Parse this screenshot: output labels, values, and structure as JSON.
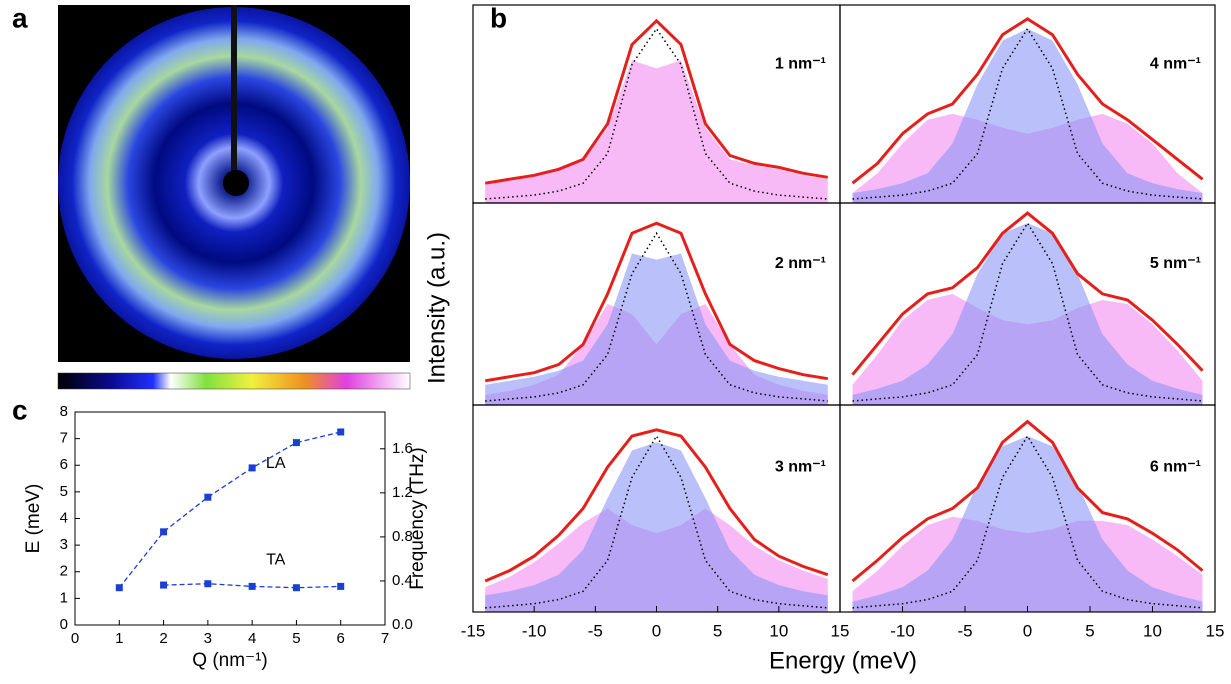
{
  "panel_labels": {
    "a": "a",
    "b": "b",
    "c": "c"
  },
  "shared_axes": {
    "xlabel": "Energy (meV)",
    "ylabel": "Intensity (a.u.)"
  },
  "chart_data": [
    {
      "type": "line",
      "label": "1 nm⁻¹",
      "xlim": [
        -15,
        15
      ],
      "ylim": [
        0,
        1
      ],
      "x": [
        -14,
        -12,
        -10,
        -8,
        -6,
        -4,
        -2,
        0,
        2,
        4,
        6,
        8,
        10,
        12,
        14
      ],
      "series": [
        {
          "style": "area",
          "color": "#f48cf0",
          "values": [
            0.1,
            0.12,
            0.14,
            0.17,
            0.21,
            0.38,
            0.72,
            0.68,
            0.72,
            0.38,
            0.22,
            0.19,
            0.17,
            0.14,
            0.12
          ]
        },
        {
          "style": "dotted",
          "color": "#000000",
          "values": [
            0.02,
            0.03,
            0.04,
            0.06,
            0.1,
            0.25,
            0.7,
            0.88,
            0.7,
            0.25,
            0.1,
            0.06,
            0.04,
            0.03,
            0.02
          ]
        },
        {
          "style": "line",
          "color": "#e3201b",
          "values": [
            0.1,
            0.12,
            0.14,
            0.17,
            0.22,
            0.4,
            0.8,
            0.92,
            0.8,
            0.4,
            0.24,
            0.2,
            0.18,
            0.15,
            0.13
          ]
        }
      ]
    },
    {
      "type": "line",
      "label": "2 nm⁻¹",
      "xlim": [
        -15,
        15
      ],
      "ylim": [
        0,
        1
      ],
      "x": [
        -14,
        -12,
        -10,
        -8,
        -6,
        -4,
        -2,
        0,
        2,
        4,
        6,
        8,
        10,
        12,
        14
      ],
      "series": [
        {
          "style": "area",
          "color": "#f48cf0",
          "values": [
            0.05,
            0.07,
            0.1,
            0.15,
            0.3,
            0.5,
            0.45,
            0.3,
            0.45,
            0.5,
            0.3,
            0.15,
            0.1,
            0.07,
            0.05
          ]
        },
        {
          "style": "area",
          "color": "#8c96f5",
          "values": [
            0.1,
            0.12,
            0.14,
            0.17,
            0.22,
            0.4,
            0.75,
            0.72,
            0.75,
            0.4,
            0.22,
            0.17,
            0.14,
            0.12,
            0.1
          ]
        },
        {
          "style": "dotted",
          "color": "#000000",
          "values": [
            0.02,
            0.03,
            0.04,
            0.06,
            0.1,
            0.25,
            0.65,
            0.85,
            0.65,
            0.25,
            0.1,
            0.06,
            0.04,
            0.03,
            0.02
          ]
        },
        {
          "style": "line",
          "color": "#e3201b",
          "values": [
            0.12,
            0.14,
            0.16,
            0.2,
            0.3,
            0.55,
            0.85,
            0.9,
            0.85,
            0.55,
            0.3,
            0.22,
            0.18,
            0.15,
            0.13
          ]
        }
      ]
    },
    {
      "type": "line",
      "label": "3 nm⁻¹",
      "xlim": [
        -15,
        15
      ],
      "ylim": [
        0,
        1
      ],
      "x": [
        -14,
        -12,
        -10,
        -8,
        -6,
        -4,
        -2,
        0,
        2,
        4,
        6,
        8,
        10,
        12,
        14
      ],
      "xticks": [
        -15,
        -10,
        -5,
        0,
        5,
        10,
        15
      ],
      "series": [
        {
          "style": "area",
          "color": "#f48cf0",
          "values": [
            0.12,
            0.17,
            0.24,
            0.33,
            0.43,
            0.5,
            0.42,
            0.38,
            0.42,
            0.5,
            0.42,
            0.32,
            0.25,
            0.2,
            0.16
          ]
        },
        {
          "style": "area",
          "color": "#8c96f5",
          "values": [
            0.08,
            0.1,
            0.13,
            0.18,
            0.3,
            0.55,
            0.78,
            0.82,
            0.78,
            0.55,
            0.3,
            0.18,
            0.13,
            0.1,
            0.08
          ]
        },
        {
          "style": "dotted",
          "color": "#000000",
          "values": [
            0.02,
            0.03,
            0.04,
            0.06,
            0.1,
            0.25,
            0.65,
            0.85,
            0.65,
            0.25,
            0.1,
            0.06,
            0.04,
            0.03,
            0.02
          ]
        },
        {
          "style": "line",
          "color": "#e3201b",
          "values": [
            0.15,
            0.2,
            0.27,
            0.37,
            0.5,
            0.7,
            0.85,
            0.88,
            0.85,
            0.7,
            0.5,
            0.35,
            0.27,
            0.22,
            0.18
          ]
        }
      ]
    },
    {
      "type": "line",
      "label": "4 nm⁻¹",
      "xlim": [
        -15,
        15
      ],
      "ylim": [
        0,
        1
      ],
      "x": [
        -14,
        -12,
        -10,
        -8,
        -6,
        -4,
        -2,
        0,
        2,
        4,
        6,
        8,
        10,
        12,
        14
      ],
      "series": [
        {
          "style": "area",
          "color": "#f48cf0",
          "values": [
            0.05,
            0.15,
            0.3,
            0.42,
            0.45,
            0.42,
            0.38,
            0.35,
            0.38,
            0.42,
            0.45,
            0.4,
            0.3,
            0.15,
            0.05
          ]
        },
        {
          "style": "area",
          "color": "#8c96f5",
          "values": [
            0.05,
            0.07,
            0.1,
            0.15,
            0.3,
            0.6,
            0.82,
            0.88,
            0.82,
            0.6,
            0.3,
            0.15,
            0.1,
            0.07,
            0.05
          ]
        },
        {
          "style": "dotted",
          "color": "#000000",
          "values": [
            0.02,
            0.03,
            0.04,
            0.06,
            0.1,
            0.25,
            0.68,
            0.88,
            0.68,
            0.25,
            0.1,
            0.06,
            0.04,
            0.03,
            0.02
          ]
        },
        {
          "style": "line",
          "color": "#e3201b",
          "values": [
            0.1,
            0.2,
            0.35,
            0.45,
            0.5,
            0.65,
            0.85,
            0.93,
            0.85,
            0.65,
            0.5,
            0.42,
            0.32,
            0.22,
            0.12
          ]
        }
      ]
    },
    {
      "type": "line",
      "label": "5 nm⁻¹",
      "xlim": [
        -15,
        15
      ],
      "ylim": [
        0,
        1
      ],
      "x": [
        -14,
        -12,
        -10,
        -8,
        -6,
        -4,
        -2,
        0,
        2,
        4,
        6,
        8,
        10,
        12,
        14
      ],
      "series": [
        {
          "style": "area",
          "color": "#f48cf0",
          "values": [
            0.1,
            0.25,
            0.42,
            0.52,
            0.55,
            0.48,
            0.42,
            0.4,
            0.42,
            0.48,
            0.52,
            0.5,
            0.4,
            0.27,
            0.12
          ]
        },
        {
          "style": "area",
          "color": "#8c96f5",
          "values": [
            0.05,
            0.08,
            0.12,
            0.2,
            0.35,
            0.65,
            0.85,
            0.9,
            0.85,
            0.65,
            0.35,
            0.2,
            0.12,
            0.08,
            0.05
          ]
        },
        {
          "style": "dotted",
          "color": "#000000",
          "values": [
            0.02,
            0.03,
            0.04,
            0.06,
            0.1,
            0.25,
            0.7,
            0.9,
            0.7,
            0.25,
            0.1,
            0.06,
            0.04,
            0.03,
            0.02
          ]
        },
        {
          "style": "line",
          "color": "#e3201b",
          "values": [
            0.15,
            0.3,
            0.45,
            0.55,
            0.58,
            0.68,
            0.85,
            0.95,
            0.85,
            0.65,
            0.55,
            0.52,
            0.42,
            0.3,
            0.17
          ]
        }
      ]
    },
    {
      "type": "line",
      "label": "6 nm⁻¹",
      "xlim": [
        -15,
        15
      ],
      "ylim": [
        0,
        1
      ],
      "x": [
        -14,
        -12,
        -10,
        -8,
        -6,
        -4,
        -2,
        0,
        2,
        4,
        6,
        8,
        10,
        12,
        14
      ],
      "xticks": [
        -10,
        -5,
        0,
        5,
        10,
        15
      ],
      "series": [
        {
          "style": "area",
          "color": "#f48cf0",
          "values": [
            0.1,
            0.2,
            0.32,
            0.42,
            0.46,
            0.44,
            0.4,
            0.38,
            0.4,
            0.44,
            0.44,
            0.42,
            0.35,
            0.27,
            0.18
          ]
        },
        {
          "style": "area",
          "color": "#8c96f5",
          "values": [
            0.05,
            0.08,
            0.12,
            0.2,
            0.35,
            0.62,
            0.8,
            0.85,
            0.8,
            0.62,
            0.35,
            0.2,
            0.12,
            0.08,
            0.05
          ]
        },
        {
          "style": "dotted",
          "color": "#000000",
          "values": [
            0.02,
            0.03,
            0.04,
            0.06,
            0.1,
            0.25,
            0.65,
            0.85,
            0.65,
            0.25,
            0.1,
            0.06,
            0.04,
            0.03,
            0.02
          ]
        },
        {
          "style": "line",
          "color": "#e3201b",
          "values": [
            0.15,
            0.25,
            0.36,
            0.45,
            0.5,
            0.6,
            0.82,
            0.92,
            0.82,
            0.6,
            0.48,
            0.45,
            0.38,
            0.3,
            0.2
          ]
        }
      ]
    },
    {
      "type": "scatter-line",
      "xlabel": "Q (nm⁻¹)",
      "ylabel": "E (meV)",
      "y2label": "Frequency (THz)",
      "xlim": [
        0,
        7
      ],
      "xticks": [
        0,
        1,
        2,
        3,
        4,
        5,
        6,
        7
      ],
      "ylim": [
        0,
        8
      ],
      "yticks": [
        0,
        1,
        2,
        3,
        4,
        5,
        6,
        7,
        8
      ],
      "y2lim": [
        0,
        1.934
      ],
      "y2ticks": [
        {
          "value": 0,
          "label": "0.0"
        },
        0.4,
        0.8,
        1.2,
        1.6
      ],
      "color": "#1a3fd6",
      "x": [
        1,
        2,
        3,
        4,
        5,
        6
      ],
      "series": [
        {
          "name": "LA",
          "values": [
            1.4,
            3.5,
            4.8,
            5.9,
            6.85,
            7.25
          ]
        },
        {
          "name": "TA",
          "values": [
            null,
            1.5,
            1.55,
            1.45,
            1.4,
            1.45
          ]
        }
      ]
    }
  ]
}
